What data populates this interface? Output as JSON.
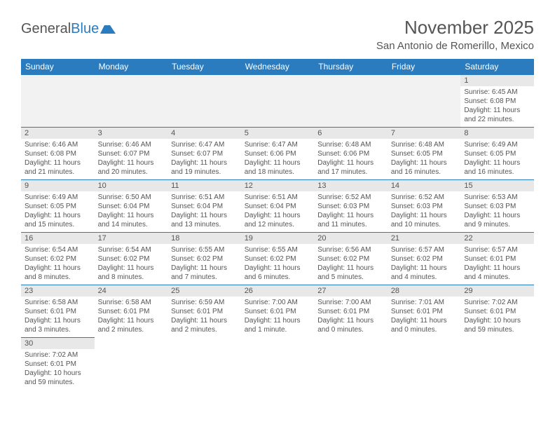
{
  "logo": {
    "text1": "General",
    "text2": "Blue"
  },
  "title": "November 2025",
  "location": "San Antonio de Romerillo, Mexico",
  "colors": {
    "header_bg": "#2b7bbf",
    "header_text": "#ffffff",
    "daynum_bg": "#e8e8e8",
    "row_border": "#2b7bbf",
    "body_text": "#555555",
    "page_bg": "#ffffff"
  },
  "weekdays": [
    "Sunday",
    "Monday",
    "Tuesday",
    "Wednesday",
    "Thursday",
    "Friday",
    "Saturday"
  ],
  "first_weekday_index": 6,
  "days": [
    {
      "n": 1,
      "sunrise": "6:45 AM",
      "sunset": "6:08 PM",
      "daylight": "11 hours and 22 minutes."
    },
    {
      "n": 2,
      "sunrise": "6:46 AM",
      "sunset": "6:08 PM",
      "daylight": "11 hours and 21 minutes."
    },
    {
      "n": 3,
      "sunrise": "6:46 AM",
      "sunset": "6:07 PM",
      "daylight": "11 hours and 20 minutes."
    },
    {
      "n": 4,
      "sunrise": "6:47 AM",
      "sunset": "6:07 PM",
      "daylight": "11 hours and 19 minutes."
    },
    {
      "n": 5,
      "sunrise": "6:47 AM",
      "sunset": "6:06 PM",
      "daylight": "11 hours and 18 minutes."
    },
    {
      "n": 6,
      "sunrise": "6:48 AM",
      "sunset": "6:06 PM",
      "daylight": "11 hours and 17 minutes."
    },
    {
      "n": 7,
      "sunrise": "6:48 AM",
      "sunset": "6:05 PM",
      "daylight": "11 hours and 16 minutes."
    },
    {
      "n": 8,
      "sunrise": "6:49 AM",
      "sunset": "6:05 PM",
      "daylight": "11 hours and 16 minutes."
    },
    {
      "n": 9,
      "sunrise": "6:49 AM",
      "sunset": "6:05 PM",
      "daylight": "11 hours and 15 minutes."
    },
    {
      "n": 10,
      "sunrise": "6:50 AM",
      "sunset": "6:04 PM",
      "daylight": "11 hours and 14 minutes."
    },
    {
      "n": 11,
      "sunrise": "6:51 AM",
      "sunset": "6:04 PM",
      "daylight": "11 hours and 13 minutes."
    },
    {
      "n": 12,
      "sunrise": "6:51 AM",
      "sunset": "6:04 PM",
      "daylight": "11 hours and 12 minutes."
    },
    {
      "n": 13,
      "sunrise": "6:52 AM",
      "sunset": "6:03 PM",
      "daylight": "11 hours and 11 minutes."
    },
    {
      "n": 14,
      "sunrise": "6:52 AM",
      "sunset": "6:03 PM",
      "daylight": "11 hours and 10 minutes."
    },
    {
      "n": 15,
      "sunrise": "6:53 AM",
      "sunset": "6:03 PM",
      "daylight": "11 hours and 9 minutes."
    },
    {
      "n": 16,
      "sunrise": "6:54 AM",
      "sunset": "6:02 PM",
      "daylight": "11 hours and 8 minutes."
    },
    {
      "n": 17,
      "sunrise": "6:54 AM",
      "sunset": "6:02 PM",
      "daylight": "11 hours and 8 minutes."
    },
    {
      "n": 18,
      "sunrise": "6:55 AM",
      "sunset": "6:02 PM",
      "daylight": "11 hours and 7 minutes."
    },
    {
      "n": 19,
      "sunrise": "6:55 AM",
      "sunset": "6:02 PM",
      "daylight": "11 hours and 6 minutes."
    },
    {
      "n": 20,
      "sunrise": "6:56 AM",
      "sunset": "6:02 PM",
      "daylight": "11 hours and 5 minutes."
    },
    {
      "n": 21,
      "sunrise": "6:57 AM",
      "sunset": "6:02 PM",
      "daylight": "11 hours and 4 minutes."
    },
    {
      "n": 22,
      "sunrise": "6:57 AM",
      "sunset": "6:01 PM",
      "daylight": "11 hours and 4 minutes."
    },
    {
      "n": 23,
      "sunrise": "6:58 AM",
      "sunset": "6:01 PM",
      "daylight": "11 hours and 3 minutes."
    },
    {
      "n": 24,
      "sunrise": "6:58 AM",
      "sunset": "6:01 PM",
      "daylight": "11 hours and 2 minutes."
    },
    {
      "n": 25,
      "sunrise": "6:59 AM",
      "sunset": "6:01 PM",
      "daylight": "11 hours and 2 minutes."
    },
    {
      "n": 26,
      "sunrise": "7:00 AM",
      "sunset": "6:01 PM",
      "daylight": "11 hours and 1 minute."
    },
    {
      "n": 27,
      "sunrise": "7:00 AM",
      "sunset": "6:01 PM",
      "daylight": "11 hours and 0 minutes."
    },
    {
      "n": 28,
      "sunrise": "7:01 AM",
      "sunset": "6:01 PM",
      "daylight": "11 hours and 0 minutes."
    },
    {
      "n": 29,
      "sunrise": "7:02 AM",
      "sunset": "6:01 PM",
      "daylight": "10 hours and 59 minutes."
    },
    {
      "n": 30,
      "sunrise": "7:02 AM",
      "sunset": "6:01 PM",
      "daylight": "10 hours and 59 minutes."
    }
  ],
  "labels": {
    "sunrise": "Sunrise:",
    "sunset": "Sunset:",
    "daylight": "Daylight:"
  }
}
